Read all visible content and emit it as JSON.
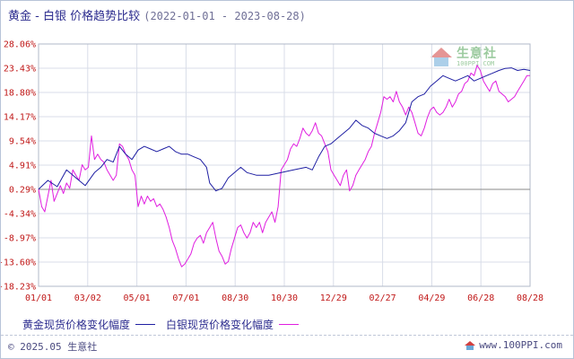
{
  "title": {
    "main": "黄金 - 白银 价格趋势比较",
    "range": "(2022-01-01 - 2023-08-28)"
  },
  "watermark": {
    "brand": "生意社",
    "site": "100PPI.COM"
  },
  "footer": {
    "copyright": "© 2025.05 生意社",
    "site": "www.100PPI.com"
  },
  "colors": {
    "gold": "#1f1fa3",
    "silver": "#e01ee0",
    "tick": "#c01818",
    "grid": "#d8dde8",
    "baseline": "#8a8a8a"
  },
  "chart_data": {
    "type": "line",
    "ylim": [
      -18.23,
      28.06
    ],
    "y_ticks": [
      "28.06%",
      "23.43%",
      "18.80%",
      "14.17%",
      "9.54%",
      "4.91%",
      "0.29%",
      "-4.34%",
      "-8.97%",
      "-13.60%",
      "-18.23%"
    ],
    "x_ticks": [
      "01/01",
      "03/02",
      "05/01",
      "07/01",
      "08/30",
      "10/30",
      "12/29",
      "02/27",
      "04/29",
      "06/28",
      "08/28"
    ],
    "grid": true,
    "legend_position": "bottom-left",
    "series": [
      {
        "name": "黄金现货价格变化幅度",
        "color": "#1f1fa3",
        "values": [
          [
            0,
            0.3
          ],
          [
            3,
            2.0
          ],
          [
            6,
            0.8
          ],
          [
            9,
            4.0
          ],
          [
            12,
            2.5
          ],
          [
            15,
            1.0
          ],
          [
            18,
            3.5
          ],
          [
            20,
            4.5
          ],
          [
            22,
            6.0
          ],
          [
            24,
            5.5
          ],
          [
            26,
            8.5
          ],
          [
            28,
            7.0
          ],
          [
            30,
            6.0
          ],
          [
            32,
            7.8
          ],
          [
            34,
            8.5
          ],
          [
            36,
            8.0
          ],
          [
            38,
            7.5
          ],
          [
            40,
            8.0
          ],
          [
            42,
            8.5
          ],
          [
            44,
            7.5
          ],
          [
            46,
            7.0
          ],
          [
            48,
            7.0
          ],
          [
            50,
            6.5
          ],
          [
            52,
            6.0
          ],
          [
            54,
            4.5
          ],
          [
            55,
            1.5
          ],
          [
            57,
            0.0
          ],
          [
            59,
            0.5
          ],
          [
            61,
            2.5
          ],
          [
            63,
            3.5
          ],
          [
            65,
            4.5
          ],
          [
            67,
            3.5
          ],
          [
            70,
            3.0
          ],
          [
            74,
            3.0
          ],
          [
            78,
            3.5
          ],
          [
            82,
            4.0
          ],
          [
            86,
            4.5
          ],
          [
            88,
            4.0
          ],
          [
            90,
            6.5
          ],
          [
            92,
            8.5
          ],
          [
            94,
            9.0
          ],
          [
            96,
            10.0
          ],
          [
            98,
            11.0
          ],
          [
            100,
            12.0
          ],
          [
            102,
            13.5
          ],
          [
            104,
            12.5
          ],
          [
            106,
            12.0
          ],
          [
            108,
            11.0
          ],
          [
            110,
            10.5
          ],
          [
            112,
            10.0
          ],
          [
            114,
            10.5
          ],
          [
            116,
            11.5
          ],
          [
            118,
            13.0
          ],
          [
            120,
            17.0
          ],
          [
            122,
            18.0
          ],
          [
            124,
            18.5
          ],
          [
            126,
            20.0
          ],
          [
            128,
            21.0
          ],
          [
            130,
            22.0
          ],
          [
            132,
            21.5
          ],
          [
            134,
            21.0
          ],
          [
            136,
            21.5
          ],
          [
            138,
            22.0
          ],
          [
            140,
            21.0
          ],
          [
            142,
            21.5
          ],
          [
            144,
            22.0
          ],
          [
            146,
            22.5
          ],
          [
            148,
            23.0
          ],
          [
            150,
            23.4
          ],
          [
            152,
            23.5
          ],
          [
            154,
            23.0
          ],
          [
            156,
            23.2
          ],
          [
            158,
            23.0
          ]
        ]
      },
      {
        "name": "白银现货价格变化幅度",
        "color": "#e01ee0",
        "values": [
          [
            0,
            0.3
          ],
          [
            1,
            -3.0
          ],
          [
            2,
            -4.0
          ],
          [
            3,
            -1.0
          ],
          [
            4,
            2.0
          ],
          [
            5,
            -2.0
          ],
          [
            6,
            -0.5
          ],
          [
            7,
            1.0
          ],
          [
            8,
            -0.5
          ],
          [
            9,
            1.5
          ],
          [
            10,
            0.5
          ],
          [
            11,
            4.0
          ],
          [
            12,
            3.0
          ],
          [
            13,
            2.0
          ],
          [
            14,
            5.0
          ],
          [
            15,
            4.0
          ],
          [
            16,
            4.5
          ],
          [
            17,
            10.5
          ],
          [
            18,
            6.0
          ],
          [
            19,
            7.0
          ],
          [
            20,
            6.0
          ],
          [
            21,
            5.5
          ],
          [
            22,
            4.0
          ],
          [
            23,
            3.0
          ],
          [
            24,
            2.0
          ],
          [
            25,
            3.0
          ],
          [
            26,
            9.0
          ],
          [
            27,
            8.5
          ],
          [
            28,
            7.0
          ],
          [
            29,
            6.0
          ],
          [
            30,
            4.0
          ],
          [
            31,
            3.0
          ],
          [
            32,
            -3.0
          ],
          [
            33,
            -1.0
          ],
          [
            34,
            -2.5
          ],
          [
            35,
            -1.0
          ],
          [
            36,
            -2.0
          ],
          [
            37,
            -1.5
          ],
          [
            38,
            -3.0
          ],
          [
            39,
            -2.5
          ],
          [
            40,
            -3.5
          ],
          [
            41,
            -5.0
          ],
          [
            42,
            -7.0
          ],
          [
            43,
            -9.5
          ],
          [
            44,
            -11.0
          ],
          [
            45,
            -13.0
          ],
          [
            46,
            -14.5
          ],
          [
            47,
            -14.0
          ],
          [
            48,
            -13.0
          ],
          [
            49,
            -12.0
          ],
          [
            50,
            -10.0
          ],
          [
            51,
            -9.0
          ],
          [
            52,
            -8.5
          ],
          [
            53,
            -10.0
          ],
          [
            54,
            -8.0
          ],
          [
            55,
            -7.0
          ],
          [
            56,
            -6.0
          ],
          [
            57,
            -9.0
          ],
          [
            58,
            -11.5
          ],
          [
            59,
            -12.5
          ],
          [
            60,
            -14.0
          ],
          [
            61,
            -13.5
          ],
          [
            62,
            -11.0
          ],
          [
            63,
            -9.0
          ],
          [
            64,
            -7.0
          ],
          [
            65,
            -6.5
          ],
          [
            66,
            -8.0
          ],
          [
            67,
            -9.0
          ],
          [
            68,
            -8.0
          ],
          [
            69,
            -6.0
          ],
          [
            70,
            -7.0
          ],
          [
            71,
            -6.0
          ],
          [
            72,
            -8.0
          ],
          [
            73,
            -6.0
          ],
          [
            74,
            -5.0
          ],
          [
            75,
            -4.0
          ],
          [
            76,
            -6.0
          ],
          [
            77,
            -3.0
          ],
          [
            78,
            4.0
          ],
          [
            79,
            5.0
          ],
          [
            80,
            6.0
          ],
          [
            81,
            8.0
          ],
          [
            82,
            9.0
          ],
          [
            83,
            8.5
          ],
          [
            84,
            10.0
          ],
          [
            85,
            12.0
          ],
          [
            86,
            11.0
          ],
          [
            87,
            10.5
          ],
          [
            88,
            11.5
          ],
          [
            89,
            13.0
          ],
          [
            90,
            11.0
          ],
          [
            91,
            10.5
          ],
          [
            92,
            9.0
          ],
          [
            93,
            7.5
          ],
          [
            94,
            4.0
          ],
          [
            95,
            3.0
          ],
          [
            96,
            2.0
          ],
          [
            97,
            1.0
          ],
          [
            98,
            3.0
          ],
          [
            99,
            4.0
          ],
          [
            100,
            0.0
          ],
          [
            101,
            1.0
          ],
          [
            102,
            3.0
          ],
          [
            103,
            4.0
          ],
          [
            104,
            5.0
          ],
          [
            105,
            6.0
          ],
          [
            106,
            7.5
          ],
          [
            107,
            8.5
          ],
          [
            108,
            11.0
          ],
          [
            109,
            13.0
          ],
          [
            110,
            15.0
          ],
          [
            111,
            18.0
          ],
          [
            112,
            17.5
          ],
          [
            113,
            18.0
          ],
          [
            114,
            17.0
          ],
          [
            115,
            19.0
          ],
          [
            116,
            17.0
          ],
          [
            117,
            16.0
          ],
          [
            118,
            14.5
          ],
          [
            119,
            16.0
          ],
          [
            120,
            15.0
          ],
          [
            121,
            13.0
          ],
          [
            122,
            11.0
          ],
          [
            123,
            10.5
          ],
          [
            124,
            12.0
          ],
          [
            125,
            14.0
          ],
          [
            126,
            15.5
          ],
          [
            127,
            16.0
          ],
          [
            128,
            15.0
          ],
          [
            129,
            14.5
          ],
          [
            130,
            15.0
          ],
          [
            131,
            16.0
          ],
          [
            132,
            17.5
          ],
          [
            133,
            16.0
          ],
          [
            134,
            17.0
          ],
          [
            135,
            18.5
          ],
          [
            136,
            19.0
          ],
          [
            137,
            20.5
          ],
          [
            138,
            21.0
          ],
          [
            139,
            22.5
          ],
          [
            140,
            22.0
          ],
          [
            141,
            24.0
          ],
          [
            142,
            23.0
          ],
          [
            143,
            21.0
          ],
          [
            144,
            20.0
          ],
          [
            145,
            19.0
          ],
          [
            146,
            20.5
          ],
          [
            147,
            21.0
          ],
          [
            148,
            19.0
          ],
          [
            149,
            18.5
          ],
          [
            150,
            18.0
          ],
          [
            151,
            17.0
          ],
          [
            152,
            17.5
          ],
          [
            153,
            18.0
          ],
          [
            154,
            19.0
          ],
          [
            155,
            20.0
          ],
          [
            156,
            21.0
          ],
          [
            157,
            22.0
          ],
          [
            158,
            22.0
          ]
        ]
      }
    ]
  }
}
